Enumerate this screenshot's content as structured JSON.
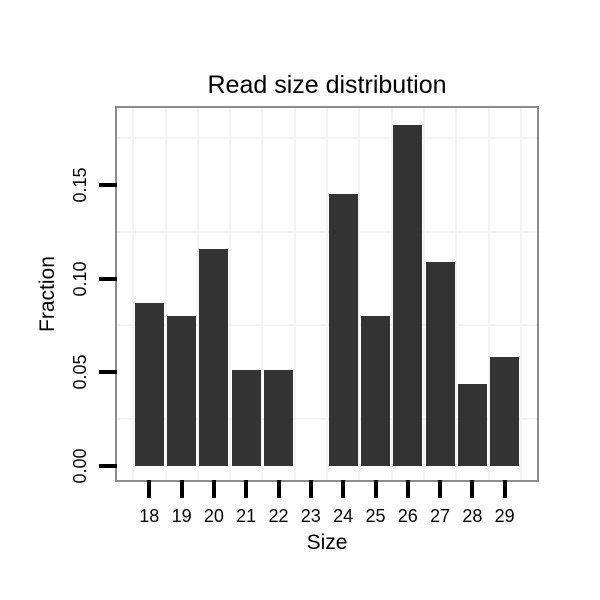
{
  "chart_data": {
    "type": "bar",
    "title": "Read size distribution",
    "xlabel": "Size",
    "ylabel": "Fraction",
    "categories": [
      "18",
      "19",
      "20",
      "21",
      "22",
      "23",
      "24",
      "25",
      "26",
      "27",
      "28",
      "29"
    ],
    "values": [
      0.087,
      0.08,
      0.116,
      0.051,
      0.051,
      0,
      0.145,
      0.08,
      0.182,
      0.109,
      0.044,
      0.058
    ],
    "yticks": [
      0,
      0.05,
      0.1,
      0.15
    ],
    "ytick_labels": [
      "0.00",
      "0.05",
      "0.10",
      "0.15"
    ],
    "y_minor_gridlines": [
      0.025,
      0.075,
      0.125,
      0.175
    ],
    "ylim": [
      -0.0075,
      0.191
    ],
    "grid": "light minor gridlines only; vertical lines between categories",
    "legend": "none",
    "colors": {
      "bar": "#333333",
      "panel_border": "#8c8c8c",
      "gridline": "#f3f3f3",
      "tick": "#000000",
      "text": "#000000",
      "background": "#ffffff"
    }
  }
}
